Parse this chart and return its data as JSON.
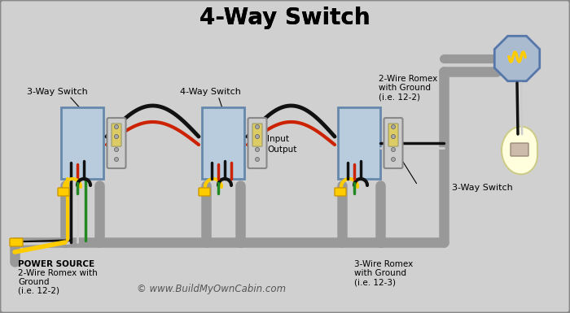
{
  "title": "4-Way Switch",
  "bg_color": "#d0d0d0",
  "title_fontsize": 20,
  "copyright": "© www.BuildMyOwnCabin.com",
  "labels": {
    "switch1": "3-Way Switch",
    "switch2": "4-Way Switch",
    "switch3": "3-Way Switch",
    "power_line1": "POWER SOURCE",
    "power_line2": "2-Wire Romex with",
    "power_line3": "Ground",
    "power_line4": "(i.e. 12-2)",
    "romex1_line1": "2-Wire Romex",
    "romex1_line2": "with Ground",
    "romex1_line3": "(i.e. 12-2)",
    "romex2_line1": "3-Wire Romex",
    "romex2_line2": "with Ground",
    "romex2_line3": "(i.e. 12-3)",
    "input": "Input",
    "output": "Output"
  },
  "colors": {
    "black_wire": "#111111",
    "red_wire": "#cc2200",
    "white_wire": "#cccccc",
    "yellow_wire": "#ffcc00",
    "green_wire": "#228822",
    "gray_conduit": "#999999",
    "box_blue": "#b8ccdd",
    "box_border": "#6688aa",
    "switch_body": "#cccccc",
    "switch_border": "#888888",
    "switch_lever": "#ddcc66",
    "oct_fill": "#aabbd0",
    "oct_border": "#5577aa",
    "bulb_fill": "#ffffdd",
    "bulb_base": "#ccbbaa"
  }
}
